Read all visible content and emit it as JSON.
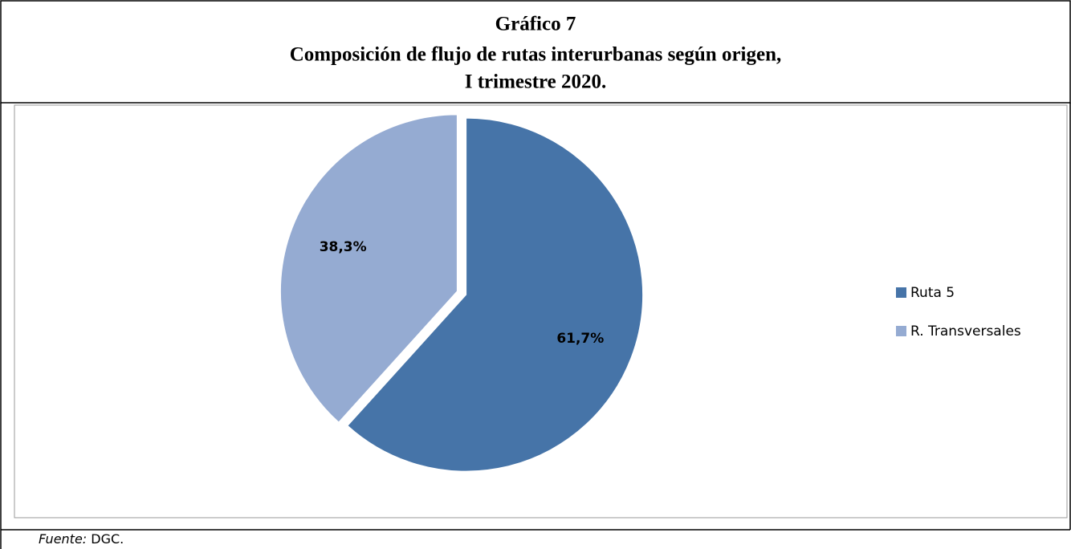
{
  "chart_data": {
    "type": "pie",
    "title": [
      "Gráfico 7",
      "Composición de flujo de rutas interurbanas según origen,",
      "I trimestre 2020."
    ],
    "categories": [
      "Ruta 5",
      "R. Transversales"
    ],
    "values": [
      61.7,
      38.3
    ],
    "value_labels": [
      "61,7%",
      "38,3%"
    ],
    "colors": [
      "#4674a8",
      "#95abd2"
    ],
    "legend": "right",
    "source_label": "Fuente:",
    "source": "DGC."
  }
}
